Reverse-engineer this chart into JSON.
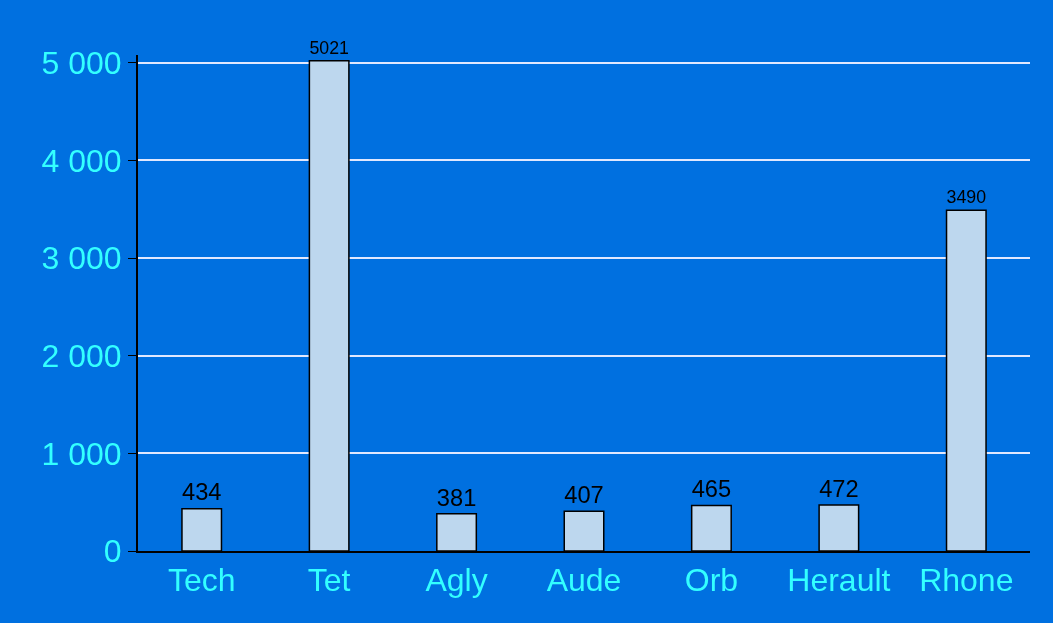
{
  "chart_data": {
    "type": "bar",
    "categories": [
      "Tech",
      "Tet",
      "Agly",
      "Aude",
      "Orb",
      "Herault",
      "Rhone"
    ],
    "values": [
      434,
      5021,
      381,
      407,
      465,
      472,
      3490
    ],
    "color": "#bdd7ee",
    "ylim": [
      0,
      5080
    ],
    "yticks": [
      0,
      {
        "value": 1000,
        "label": "1 000"
      },
      {
        "value": 2000,
        "label": "2 000"
      },
      {
        "value": 3000,
        "label": "3 000"
      },
      {
        "value": 4000,
        "label": "4 000"
      },
      {
        "value": 5000,
        "label": "5 000"
      }
    ],
    "grid": "y",
    "data_labels": true
  }
}
